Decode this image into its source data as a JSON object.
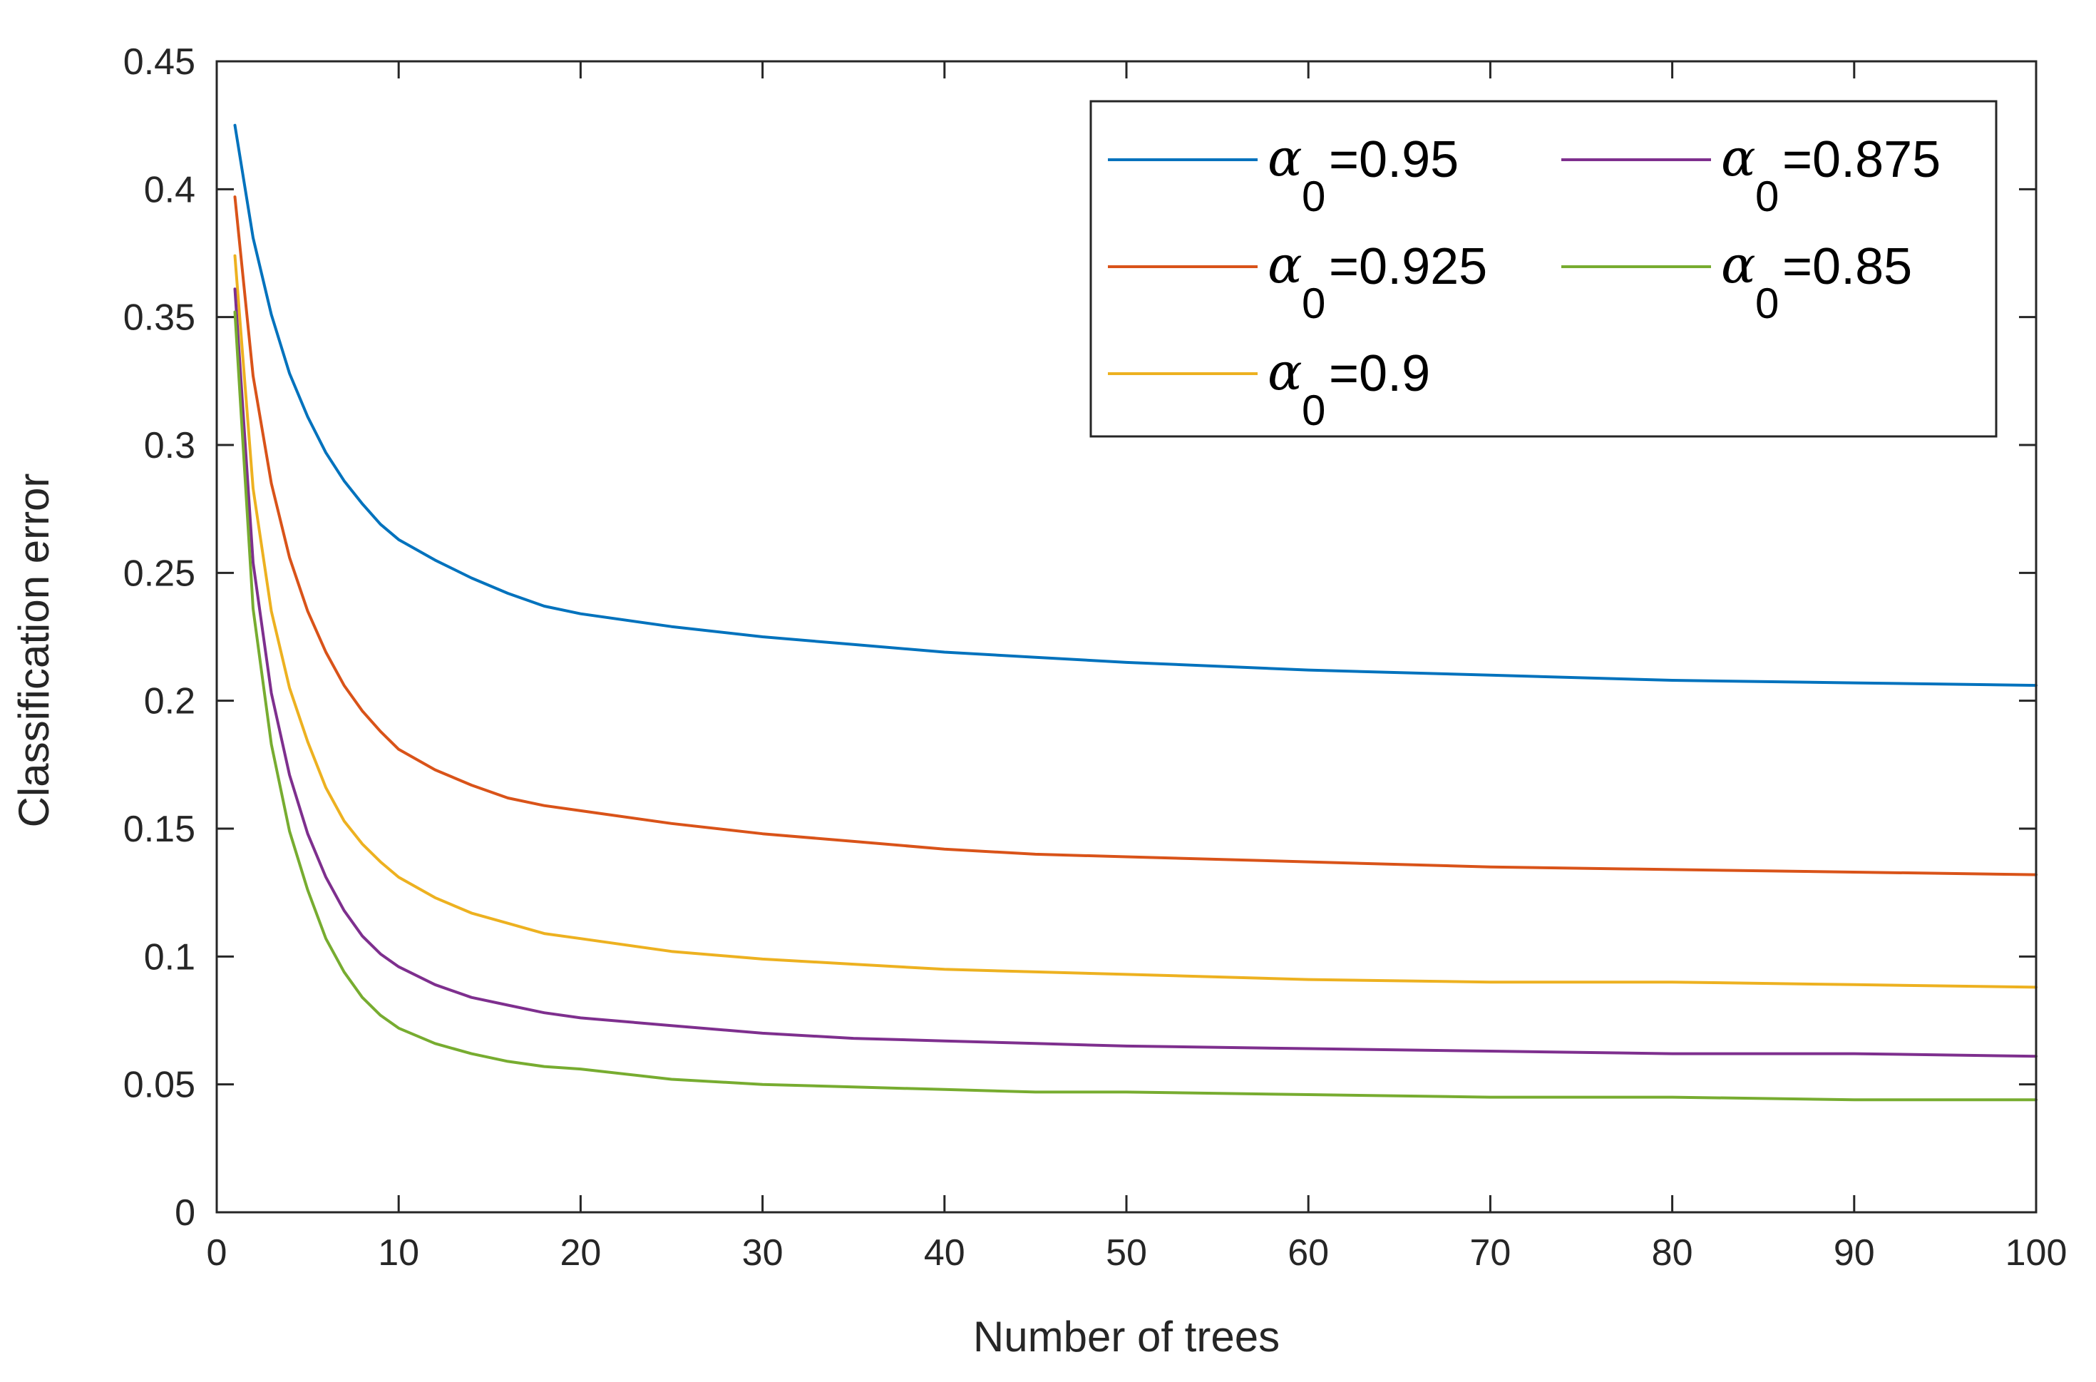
{
  "chart_data": {
    "type": "line",
    "title": "",
    "xlabel": "Number of trees",
    "ylabel": "Classification error",
    "xlim": [
      0,
      100
    ],
    "ylim": [
      0,
      0.45
    ],
    "xticks": [
      0,
      10,
      20,
      30,
      40,
      50,
      60,
      70,
      80,
      90,
      100
    ],
    "xtick_labels": [
      "0",
      "10",
      "20",
      "30",
      "40",
      "50",
      "60",
      "70",
      "80",
      "90",
      "100"
    ],
    "yticks": [
      0,
      0.05,
      0.1,
      0.15,
      0.2,
      0.25,
      0.3,
      0.35,
      0.4,
      0.45
    ],
    "ytick_labels": [
      "0",
      "0.05",
      "0.1",
      "0.15",
      "0.2",
      "0.25",
      "0.3",
      "0.35",
      "0.4",
      "0.45"
    ],
    "grid": false,
    "legend_position": "top-right",
    "x": [
      1,
      2,
      3,
      4,
      5,
      6,
      7,
      8,
      9,
      10,
      12,
      14,
      16,
      18,
      20,
      25,
      30,
      35,
      40,
      45,
      50,
      60,
      70,
      80,
      90,
      100
    ],
    "series": [
      {
        "name": "α0=0.95",
        "symbol": "α",
        "subscript": "0",
        "value_label": "=0.95",
        "color": "#0072BD",
        "values": [
          0.425,
          0.381,
          0.351,
          0.328,
          0.311,
          0.297,
          0.286,
          0.277,
          0.269,
          0.263,
          0.255,
          0.248,
          0.242,
          0.237,
          0.234,
          0.229,
          0.225,
          0.222,
          0.219,
          0.217,
          0.215,
          0.212,
          0.21,
          0.208,
          0.207,
          0.206
        ]
      },
      {
        "name": "α0=0.925",
        "symbol": "α",
        "subscript": "0",
        "value_label": "=0.925",
        "color": "#D95319",
        "values": [
          0.397,
          0.327,
          0.285,
          0.256,
          0.235,
          0.219,
          0.206,
          0.196,
          0.188,
          0.181,
          0.173,
          0.167,
          0.162,
          0.159,
          0.157,
          0.152,
          0.148,
          0.145,
          0.142,
          0.14,
          0.139,
          0.137,
          0.135,
          0.134,
          0.133,
          0.132
        ]
      },
      {
        "name": "α0=0.9",
        "symbol": "α",
        "subscript": "0",
        "value_label": "=0.9",
        "color": "#EDB120",
        "values": [
          0.374,
          0.283,
          0.235,
          0.205,
          0.184,
          0.166,
          0.153,
          0.144,
          0.137,
          0.131,
          0.123,
          0.117,
          0.113,
          0.109,
          0.107,
          0.102,
          0.099,
          0.097,
          0.095,
          0.094,
          0.093,
          0.091,
          0.09,
          0.09,
          0.089,
          0.088
        ]
      },
      {
        "name": "α0=0.875",
        "symbol": "α",
        "subscript": "0",
        "value_label": "=0.875",
        "color": "#7E2F8E",
        "values": [
          0.361,
          0.254,
          0.203,
          0.171,
          0.148,
          0.131,
          0.118,
          0.108,
          0.101,
          0.096,
          0.089,
          0.084,
          0.081,
          0.078,
          0.076,
          0.073,
          0.07,
          0.068,
          0.067,
          0.066,
          0.065,
          0.064,
          0.063,
          0.062,
          0.062,
          0.061
        ]
      },
      {
        "name": "α0=0.85",
        "symbol": "α",
        "subscript": "0",
        "value_label": "=0.85",
        "color": "#77AC30",
        "values": [
          0.352,
          0.236,
          0.183,
          0.149,
          0.126,
          0.107,
          0.094,
          0.084,
          0.077,
          0.072,
          0.066,
          0.062,
          0.059,
          0.057,
          0.056,
          0.052,
          0.05,
          0.049,
          0.048,
          0.047,
          0.047,
          0.046,
          0.045,
          0.045,
          0.044,
          0.044
        ]
      }
    ]
  }
}
